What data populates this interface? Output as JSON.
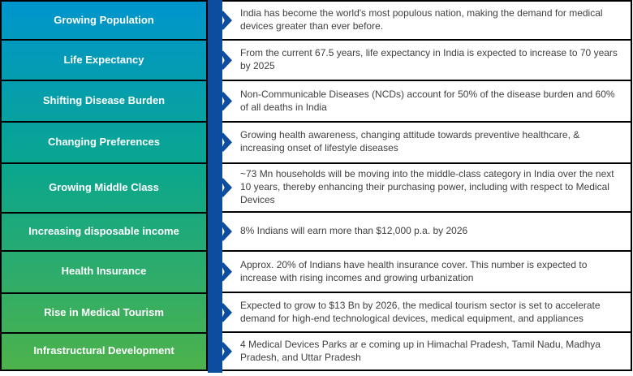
{
  "colors": {
    "gradient_top": "#0095ce",
    "gradient_mid": "#0aa68e",
    "gradient_bottom": "#4db24b",
    "bar": "#0d4d9f",
    "desc_text": "#3f3f3f",
    "label_text": "#ffffff",
    "border": "#000000"
  },
  "rows": [
    {
      "label": "Growing Population",
      "description": "India has become the world's most populous nation, making the demand for medical devices greater than ever before."
    },
    {
      "label": "Life Expectancy",
      "description": "From the current 67.5 years, life expectancy in India is expected to increase to 70 years by 2025"
    },
    {
      "label": "Shifting Disease Burden",
      "description": "Non-Communicable Diseases (NCDs) account for 50% of the disease burden and 60% of all deaths in India"
    },
    {
      "label": "Changing Preferences",
      "description": "Growing health awareness, changing attitude towards preventive healthcare, & increasing onset of lifestyle diseases"
    },
    {
      "label": "Growing Middle Class",
      "description": "~73 Mn households will be moving into the middle-class category in India over the next 10 years, thereby enhancing their purchasing power, including with respect to Medical Devices"
    },
    {
      "label": "Increasing disposable income",
      "description": "8% Indians will earn more than $12,000 p.a. by 2026"
    },
    {
      "label": "Health Insurance",
      "description": "Approx. 20% of Indians have health insurance cover. This number is expected to increase with rising incomes and growing urbanization"
    },
    {
      "label": "Rise in Medical Tourism",
      "description": "Expected to grow to $13 Bn by 2026, the medical tourism sector is set to accelerate demand for high-end technological devices, medical equipment, and appliances"
    },
    {
      "label": "Infrastructural Development",
      "description": "4 Medical Devices Parks ar e coming up in Himachal Pradesh, Tamil Nadu, Madhya Pradesh, and Uttar Pradesh"
    }
  ]
}
